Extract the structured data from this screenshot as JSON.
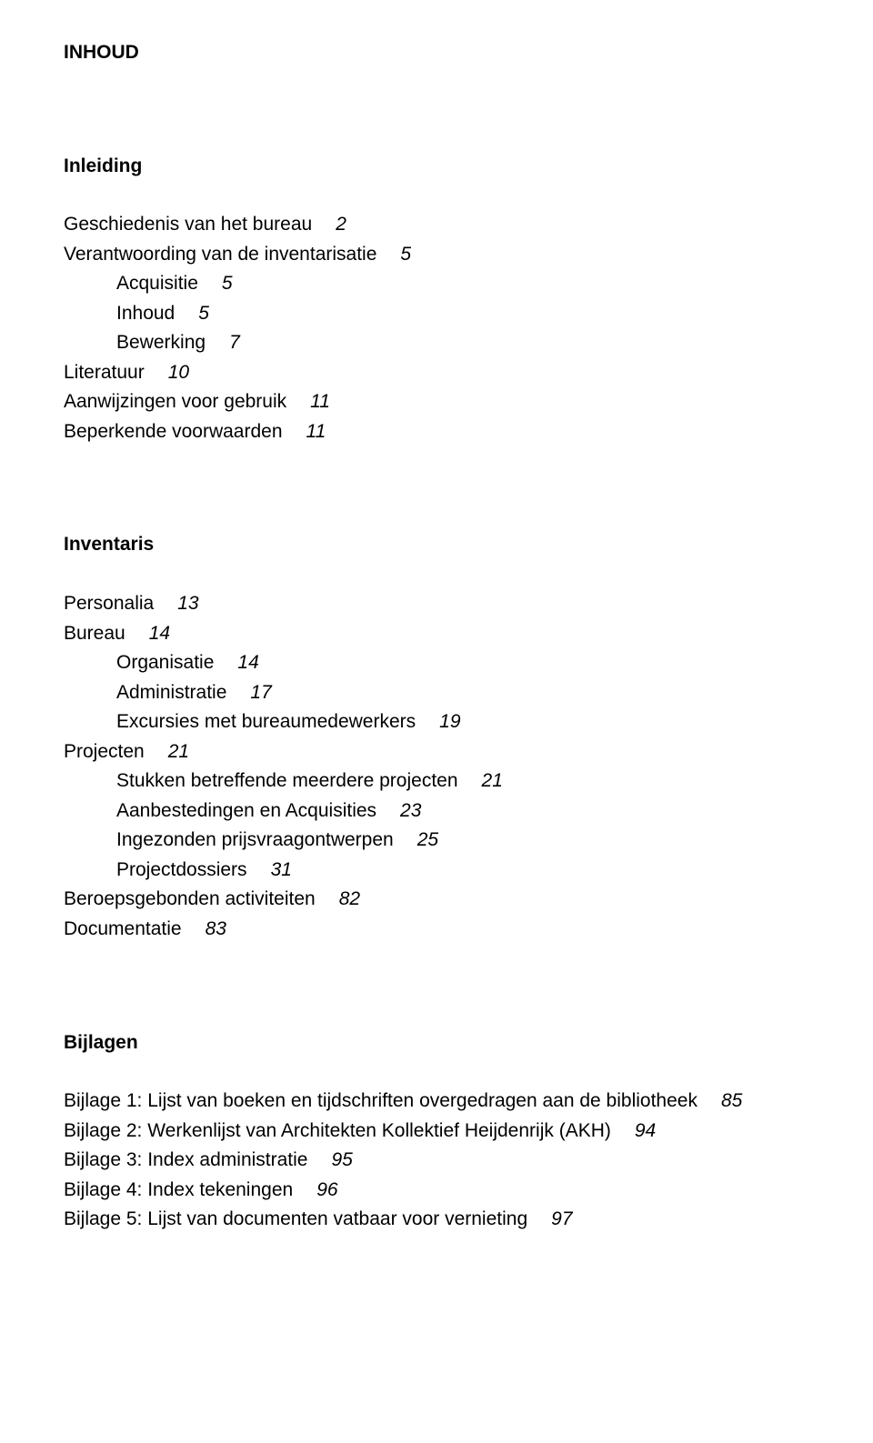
{
  "title": "INHOUD",
  "sections": {
    "inleiding": {
      "heading": "Inleiding",
      "entries": [
        {
          "label": "Geschiedenis van het bureau",
          "page": "2",
          "indent": 0
        },
        {
          "label": "Verantwoording van de inventarisatie",
          "page": "5",
          "indent": 0
        },
        {
          "label": "Acquisitie",
          "page": "5",
          "indent": 1
        },
        {
          "label": "Inhoud",
          "page": "5",
          "indent": 1
        },
        {
          "label": "Bewerking",
          "page": "7",
          "indent": 1
        },
        {
          "label": "Literatuur",
          "page": "10",
          "indent": 0
        },
        {
          "label": "Aanwijzingen voor  gebruik",
          "page": "11",
          "indent": 0
        },
        {
          "label": "Beperkende voorwaarden",
          "page": "11",
          "indent": 0
        }
      ]
    },
    "inventaris": {
      "heading": "Inventaris",
      "entries": [
        {
          "label": "Personalia",
          "page": "13",
          "indent": 0
        },
        {
          "label": "Bureau",
          "page": "14",
          "indent": 0
        },
        {
          "label": "Organisatie",
          "page": "14",
          "indent": 1
        },
        {
          "label": "Administratie",
          "page": "17",
          "indent": 1
        },
        {
          "label": "Excursies met bureaumedewerkers",
          "page": "19",
          "indent": 1
        },
        {
          "label": "Projecten",
          "page": "21",
          "indent": 0
        },
        {
          "label": "Stukken betreffende meerdere projecten",
          "page": "21",
          "indent": 1
        },
        {
          "label": "Aanbestedingen en Acquisities",
          "page": "23",
          "indent": 1
        },
        {
          "label": "Ingezonden prijsvraagontwerpen",
          "page": "25",
          "indent": 1
        },
        {
          "label": "Projectdossiers",
          "page": "31",
          "indent": 1
        },
        {
          "label": "Beroepsgebonden activiteiten",
          "page": "82",
          "indent": 0
        },
        {
          "label": "Documentatie",
          "page": "83",
          "indent": 0
        }
      ]
    },
    "bijlagen": {
      "heading": "Bijlagen",
      "entries": [
        {
          "label": "Bijlage 1: Lijst van boeken en tijdschriften overgedragen aan de bibliotheek",
          "page": "85",
          "indent": 0
        },
        {
          "label": "Bijlage 2: Werkenlijst van Architekten Kollektief Heijdenrijk (AKH)",
          "page": "94",
          "indent": 0
        },
        {
          "label": "Bijlage 3: Index administratie",
          "page": "95",
          "indent": 0
        },
        {
          "label": "Bijlage 4: Index tekeningen",
          "page": "96",
          "indent": 0
        },
        {
          "label": "Bijlage 5: Lijst van documenten vatbaar voor vernieting",
          "page": "97",
          "indent": 0
        }
      ]
    }
  }
}
